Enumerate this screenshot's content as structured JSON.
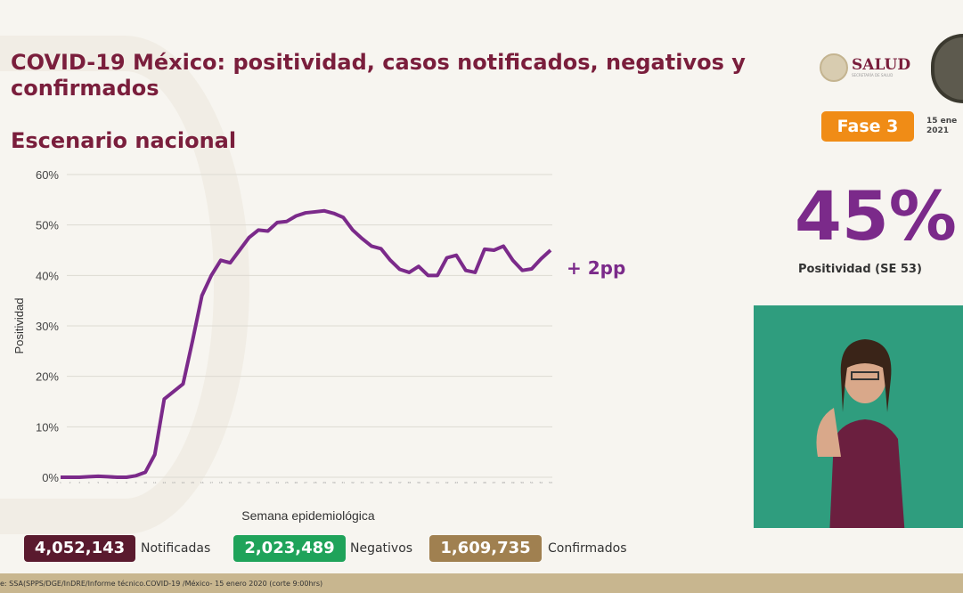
{
  "header": {
    "title": "COVID-19 México: positividad, casos notificados, negativos y confirmados",
    "subtitle": "Escenario nacional",
    "salud_logo": "SALUD",
    "salud_sub": "SECRETARÍA DE SALUD",
    "phase": "Fase 3",
    "date_line1": "15 ene",
    "date_line2": "2021"
  },
  "kpi": {
    "value": "45%",
    "label": "Positividad (SE 53)",
    "change": "+ 2pp",
    "color": "#7b2a8a"
  },
  "totals": [
    {
      "value": "4,052,143",
      "label": "Notificadas",
      "color": "#5a1a2e"
    },
    {
      "value": "2,023,489",
      "label": "Negativos",
      "color": "#1fa35a"
    },
    {
      "value": "1,609,735",
      "label": "Confirmados",
      "color": "#a08050"
    }
  ],
  "footer": "e: SSA(SPPS/DGE/InDRE/Informe técnico.COVID-19 /México- 15 enero 2020 (corte 9:00hrs)",
  "chart_data": {
    "type": "line",
    "title": "",
    "xlabel": "Semana epidemiológica",
    "ylabel": "Positividad",
    "ylim": [
      0,
      60
    ],
    "yticks": [
      "0%",
      "10%",
      "20%",
      "30%",
      "40%",
      "50%",
      "60%"
    ],
    "grid": true,
    "color": "#7b2a8a",
    "x": [
      1,
      2,
      3,
      4,
      5,
      6,
      7,
      8,
      9,
      10,
      11,
      12,
      13,
      14,
      15,
      16,
      17,
      18,
      19,
      20,
      21,
      22,
      23,
      24,
      25,
      26,
      27,
      28,
      29,
      30,
      31,
      32,
      33,
      34,
      35,
      36,
      37,
      38,
      39,
      40,
      41,
      42,
      43,
      44,
      45,
      46,
      47,
      48,
      49,
      50,
      51,
      52,
      53
    ],
    "values": [
      0,
      0,
      0,
      0.1,
      0.2,
      0.1,
      0,
      0,
      0.3,
      1,
      4.5,
      15.5,
      17,
      18.5,
      27,
      36,
      40,
      43,
      42.5,
      45,
      47.5,
      49,
      48.8,
      50.5,
      50.7,
      51.8,
      52.4,
      52.6,
      52.8,
      52.3,
      51.5,
      49,
      47.3,
      45.8,
      45.3,
      43,
      41.2,
      40.6,
      41.8,
      40,
      40,
      43.5,
      44,
      41,
      40.6,
      45.2,
      45,
      45.8,
      43,
      41,
      41.3,
      43.3,
      45
    ]
  }
}
